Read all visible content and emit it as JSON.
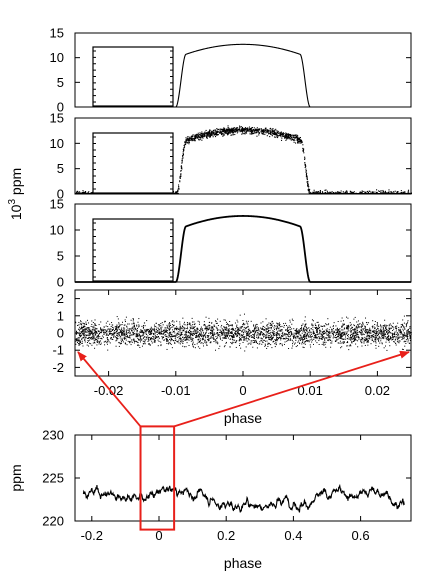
{
  "chart_data": [
    {
      "type": "line",
      "panel": "top",
      "ylabel": "10³ ppm",
      "ylim": [
        15,
        0
      ],
      "y_ticks": [
        0,
        5,
        10,
        15
      ],
      "x_ticks": [],
      "xlim": [
        -0.025,
        0.025
      ],
      "transit": {
        "start": -0.01,
        "end": 0.01,
        "depth": 12.7
      },
      "noise": "none",
      "inset": {
        "type": "line",
        "level": 7.5,
        "drop": 0.8
      }
    },
    {
      "type": "scatter",
      "panel": "second",
      "ylim": [
        15,
        0
      ],
      "y_ticks": [
        0,
        5,
        10,
        15
      ],
      "x_ticks": [],
      "xlim": [
        -0.025,
        0.025
      ],
      "transit": {
        "start": -0.01,
        "end": 0.01,
        "depth": 12.7
      },
      "noise": "dense",
      "inset": {
        "type": "scatter"
      }
    },
    {
      "type": "line",
      "panel": "third",
      "ylim": [
        15,
        0
      ],
      "y_ticks": [
        0,
        5,
        10,
        15
      ],
      "x_ticks": [],
      "xlim": [
        -0.025,
        0.025
      ],
      "transit": {
        "start": -0.01,
        "end": 0.01,
        "depth": 12.7
      },
      "noise": "thin",
      "inset": {
        "type": "line",
        "level": 8.2,
        "drop": 0.95
      }
    },
    {
      "type": "scatter",
      "panel": "residuals",
      "ylim": [
        -2.5,
        2.5
      ],
      "y_ticks": [
        2,
        1,
        0,
        -1,
        -2
      ],
      "x_ticks": [
        -0.02,
        -0.01,
        0,
        0.01,
        0.02
      ],
      "x_tick_labels": [
        "-0.02",
        "-0.01",
        "0",
        "0.01",
        "0.02"
      ],
      "xlim": [
        -0.025,
        0.025
      ],
      "xlabel": "phase",
      "noise_sigma": 0.35
    },
    {
      "type": "line",
      "panel": "bottom",
      "ylabel": "ppm",
      "ylim": [
        220,
        230
      ],
      "y_ticks": [
        230,
        225,
        220
      ],
      "x_ticks": [
        -0.2,
        0,
        0.2,
        0.4,
        0.6
      ],
      "x_tick_labels": [
        "-0.2",
        "0",
        "0.2",
        "0.4",
        "0.6"
      ],
      "xlim": [
        -0.25,
        0.75
      ],
      "xlabel": "phase",
      "baseline": 222.8,
      "highlight_box": {
        "x": [
          -0.055,
          0.045
        ],
        "y": [
          219.0,
          231.0
        ]
      }
    }
  ],
  "colors": {
    "data": "#000000",
    "zoom": "#e8201a",
    "axes": "#000000"
  }
}
